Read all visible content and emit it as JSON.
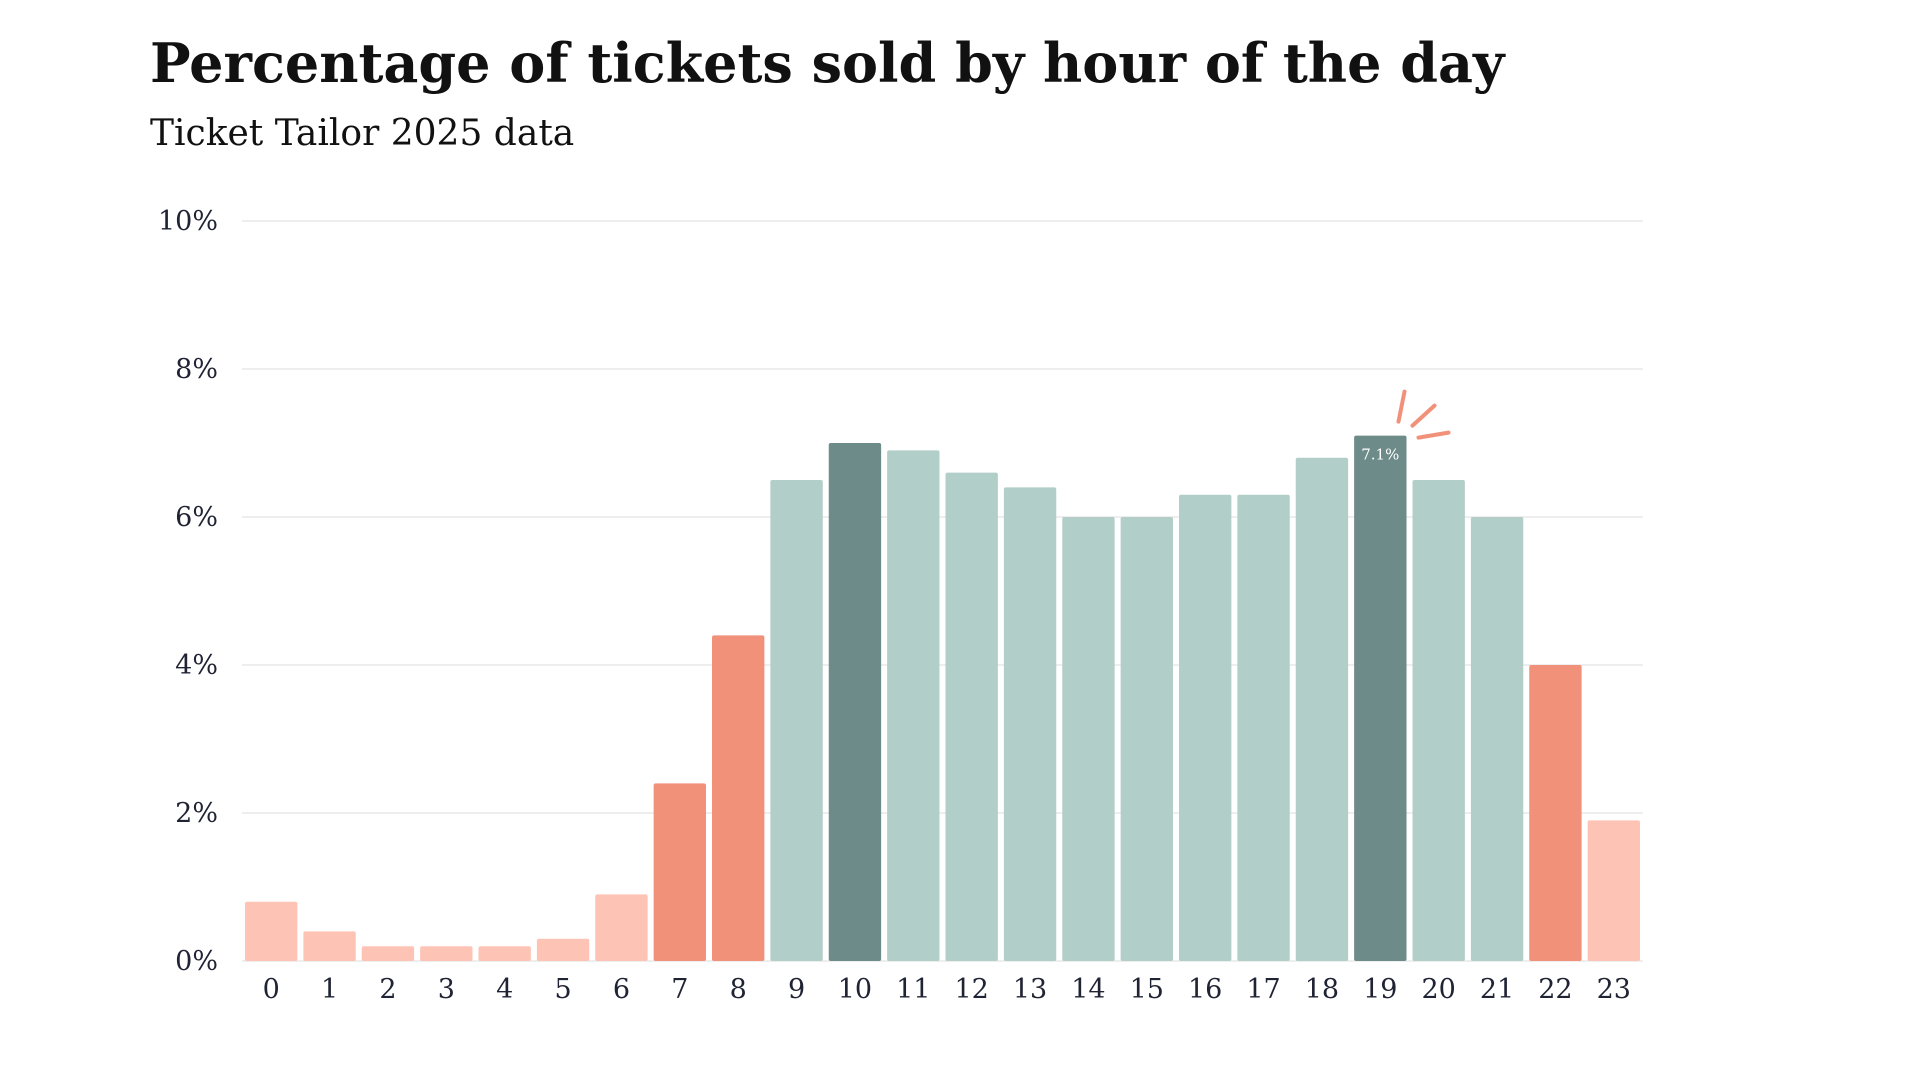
{
  "chart_data": {
    "type": "bar",
    "title": "Percentage of tickets sold by hour of the day",
    "subtitle": "Ticket Tailor 2025 data",
    "categories": [
      "0",
      "1",
      "2",
      "3",
      "4",
      "5",
      "6",
      "7",
      "8",
      "9",
      "10",
      "11",
      "12",
      "13",
      "14",
      "15",
      "16",
      "17",
      "18",
      "19",
      "20",
      "21",
      "22",
      "23"
    ],
    "values": [
      0.8,
      0.4,
      0.2,
      0.2,
      0.2,
      0.3,
      0.9,
      2.4,
      4.4,
      6.5,
      7.0,
      6.9,
      6.6,
      6.4,
      6.0,
      6.0,
      6.3,
      6.3,
      6.8,
      7.1,
      6.5,
      6.0,
      4.0,
      1.9
    ],
    "value_labels": [
      null,
      null,
      null,
      null,
      null,
      null,
      null,
      null,
      null,
      null,
      null,
      null,
      null,
      null,
      null,
      null,
      null,
      null,
      null,
      "7.1%",
      null,
      null,
      null,
      null
    ],
    "colors": [
      "#fdc4b6",
      "#fdc4b6",
      "#fdc4b6",
      "#fdc4b6",
      "#fdc4b6",
      "#fdc4b6",
      "#fdc4b6",
      "#f2917a",
      "#f2917a",
      "#b2cec8",
      "#6d8b89",
      "#b2cec8",
      "#b2cec8",
      "#b2cec8",
      "#b2cec8",
      "#b2cec8",
      "#b2cec8",
      "#b2cec8",
      "#b2cec8",
      "#6d8b89",
      "#b2cec8",
      "#b2cec8",
      "#f2917a",
      "#fdc4b6"
    ],
    "ylim": [
      0,
      10
    ],
    "yticks": [
      {
        "value": 0,
        "label": "0%"
      },
      {
        "value": 2,
        "label": "2%"
      },
      {
        "value": 4,
        "label": "4%"
      },
      {
        "value": 6,
        "label": "6%"
      },
      {
        "value": 8,
        "label": "8%"
      },
      {
        "value": 10,
        "label": "10%"
      }
    ],
    "grid": true
  }
}
